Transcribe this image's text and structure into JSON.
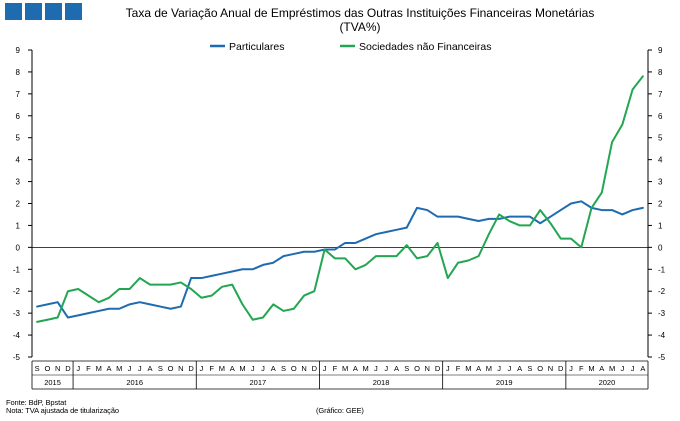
{
  "header": {
    "title_line1": "Taxa de Variação Anual de Empréstimos das Outras Instituições Financeiras Monetárias",
    "title_line2": "(TVA%)"
  },
  "footer": {
    "source": "Fonte: BdP, Bpstat",
    "note": "Nota: TVA ajustada de titularização",
    "graph": "(Gráfico: GEE)"
  },
  "colors": {
    "particulares": "#1f6bb0",
    "sociedades": "#23a651",
    "logo": "#1f6bb0"
  },
  "chart_data": {
    "type": "line",
    "title": "Taxa de Variação Anual de Empréstimos das Outras Instituições Financeiras Monetárias (TVA%)",
    "ylim": [
      -5,
      9
    ],
    "yticks": [
      "9",
      "8",
      "7",
      "6",
      "5",
      "4",
      "3",
      "2",
      "1",
      "0",
      "-1",
      "-2",
      "-3",
      "-4",
      "-5"
    ],
    "grid": false,
    "legend_position": "top",
    "months": [
      "S",
      "O",
      "N",
      "D",
      "J",
      "F",
      "M",
      "A",
      "M",
      "J",
      "J",
      "A",
      "S",
      "O",
      "N",
      "D",
      "J",
      "F",
      "M",
      "A",
      "M",
      "J",
      "J",
      "A",
      "S",
      "O",
      "N",
      "D",
      "J",
      "F",
      "M",
      "A",
      "M",
      "J",
      "J",
      "A",
      "S",
      "O",
      "N",
      "D",
      "J",
      "F",
      "M",
      "A",
      "M",
      "J",
      "J",
      "A",
      "S",
      "O",
      "N",
      "D",
      "J",
      "F",
      "M",
      "A",
      "M",
      "J",
      "J",
      "A"
    ],
    "years": [
      {
        "label": "2015",
        "months": 4
      },
      {
        "label": "2016",
        "months": 12
      },
      {
        "label": "2017",
        "months": 12
      },
      {
        "label": "2018",
        "months": 12
      },
      {
        "label": "2019",
        "months": 12
      },
      {
        "label": "2020",
        "months": 8
      }
    ],
    "series": [
      {
        "name": "Particulares",
        "color": "#1f6bb0",
        "values": [
          -2.7,
          -2.6,
          -2.5,
          -3.2,
          -3.1,
          -3.0,
          -2.9,
          -2.8,
          -2.8,
          -2.6,
          -2.5,
          -2.6,
          -2.7,
          -2.8,
          -2.7,
          -1.4,
          -1.4,
          -1.3,
          -1.2,
          -1.1,
          -1.0,
          -1.0,
          -0.8,
          -0.7,
          -0.4,
          -0.3,
          -0.2,
          -0.2,
          -0.1,
          -0.1,
          0.2,
          0.2,
          0.4,
          0.6,
          0.7,
          0.8,
          0.9,
          1.8,
          1.7,
          1.4,
          1.4,
          1.4,
          1.3,
          1.2,
          1.3,
          1.3,
          1.4,
          1.4,
          1.4,
          1.1,
          1.4,
          1.7,
          2.0,
          2.1,
          1.8,
          1.7,
          1.7,
          1.5,
          1.7,
          1.8
        ]
      },
      {
        "name": "Sociedades não Financeiras",
        "color": "#23a651",
        "values": [
          -3.4,
          -3.3,
          -3.2,
          -2.0,
          -1.9,
          -2.2,
          -2.5,
          -2.3,
          -1.9,
          -1.9,
          -1.4,
          -1.7,
          -1.7,
          -1.7,
          -1.6,
          -1.9,
          -2.3,
          -2.2,
          -1.8,
          -1.7,
          -2.6,
          -3.3,
          -3.2,
          -2.6,
          -2.9,
          -2.8,
          -2.2,
          -2.0,
          -0.1,
          -0.5,
          -0.5,
          -1.0,
          -0.8,
          -0.4,
          -0.4,
          -0.4,
          0.1,
          -0.5,
          -0.4,
          0.2,
          -1.4,
          -0.7,
          -0.6,
          -0.4,
          0.6,
          1.5,
          1.2,
          1.0,
          1.0,
          1.7,
          1.1,
          0.4,
          0.4,
          0.0,
          1.8,
          2.5,
          4.8,
          5.6,
          7.2,
          7.8
        ]
      }
    ]
  }
}
